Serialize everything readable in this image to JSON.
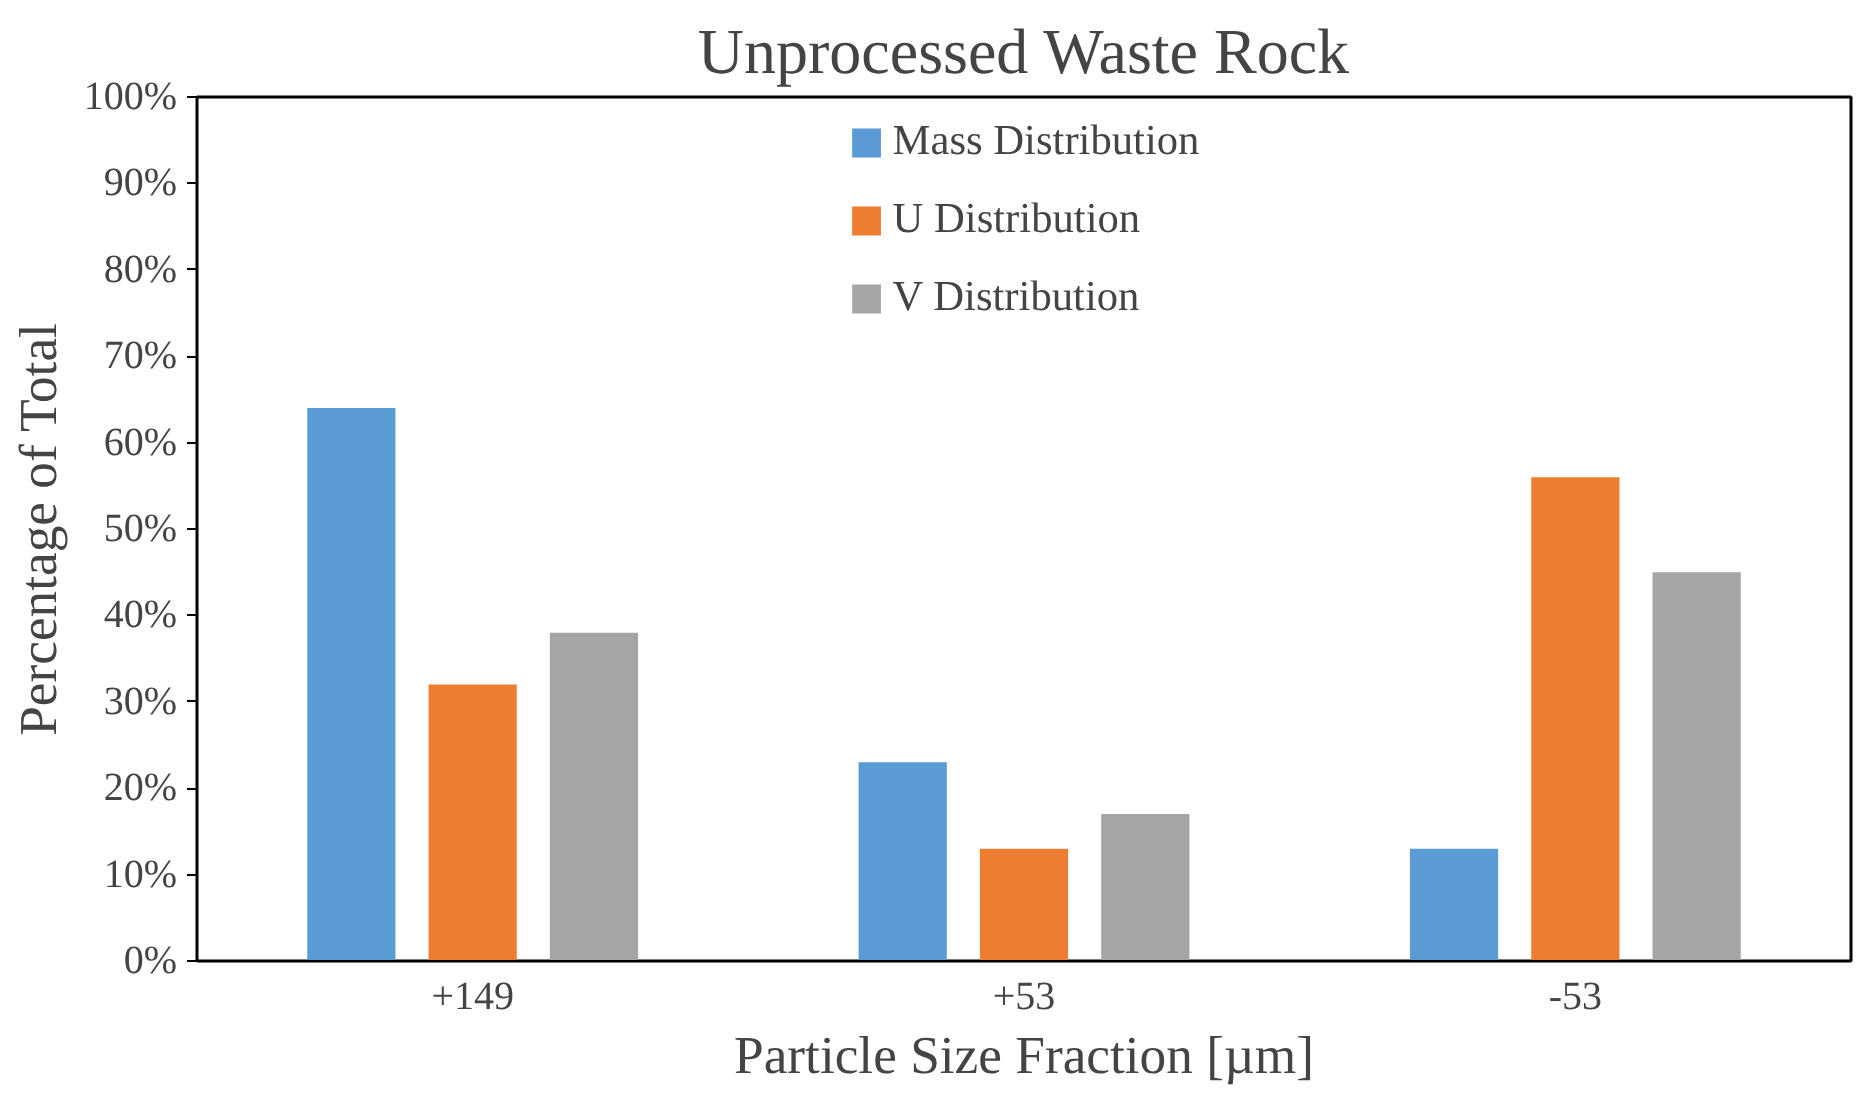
{
  "chart_data": {
    "type": "bar",
    "title": "Unprocessed Waste Rock",
    "xlabel": "Particle Size Fraction [µm]",
    "ylabel": "Percentage of Total",
    "categories": [
      "+149",
      "+53",
      "-53"
    ],
    "series": [
      {
        "name": "Mass Distribution",
        "color": "#5b9bd5",
        "values": [
          64,
          23,
          13
        ]
      },
      {
        "name": "U Distribution",
        "color": "#ed7d31",
        "values": [
          32,
          13,
          56
        ]
      },
      {
        "name": "V Distribution",
        "color": "#a5a5a5",
        "values": [
          38,
          17,
          45
        ]
      }
    ],
    "ylim": [
      0,
      100
    ],
    "yticks": [
      {
        "value": 0,
        "label": "0%"
      },
      {
        "value": 10,
        "label": "10%"
      },
      {
        "value": 20,
        "label": "20%"
      },
      {
        "value": 30,
        "label": "30%"
      },
      {
        "value": 40,
        "label": "40%"
      },
      {
        "value": 50,
        "label": "50%"
      },
      {
        "value": 60,
        "label": "60%"
      },
      {
        "value": 70,
        "label": "70%"
      },
      {
        "value": 80,
        "label": "80%"
      },
      {
        "value": 90,
        "label": "90%"
      },
      {
        "value": 100,
        "label": "100%"
      }
    ],
    "grid": false,
    "legend": "top"
  }
}
